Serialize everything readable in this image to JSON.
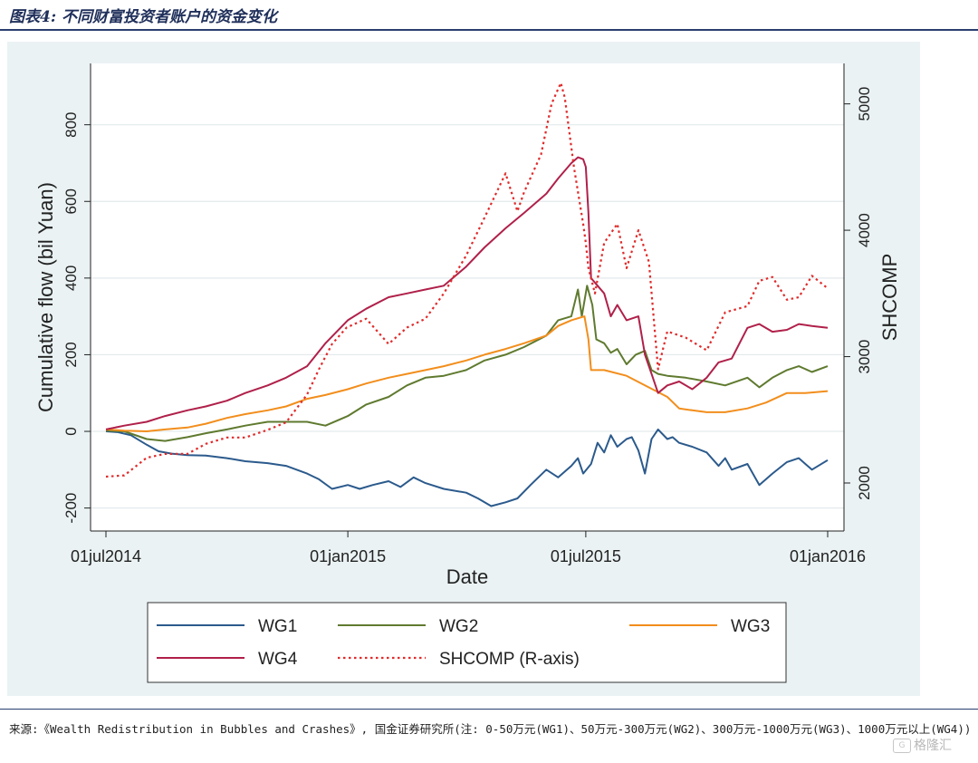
{
  "title": "图表4: 不同财富投资者账户的资金变化",
  "source": "来源:《Wealth Redistribution in Bubbles and Crashes》, 国金证券研究所(注: 0-50万元(WG1)、50万元-300万元(WG2)、300万元-1000万元(WG3)、1000万元以上(WG4))",
  "watermark": {
    "text": "格隆汇",
    "icon": "watermark-logo-icon"
  },
  "chart_data": {
    "type": "line",
    "title": "",
    "xlabel": "Date",
    "ylabel": "Cumulative flow (bil Yuan)",
    "y2label": "SHCOMP",
    "xlim": [
      "2014-07-01",
      "2016-01-01"
    ],
    "ylim": [
      -260,
      960
    ],
    "y2lim": [
      1620,
      5320
    ],
    "x_ticks": [
      {
        "date": "2014-07-01",
        "label": "01jul2014"
      },
      {
        "date": "2015-01-01",
        "label": "01jan2015"
      },
      {
        "date": "2015-07-01",
        "label": "01jul2015"
      },
      {
        "date": "2016-01-01",
        "label": "01jan2016"
      }
    ],
    "y_ticks": [
      -200,
      0,
      200,
      400,
      600,
      800
    ],
    "y2_ticks": [
      2000,
      3000,
      4000,
      5000
    ],
    "grid": true,
    "legend_position": "bottom",
    "series": [
      {
        "name": "WG1",
        "axis": "left",
        "color": "#2b5a8c",
        "style": "solid",
        "points": [
          [
            "2014-07-01",
            0
          ],
          [
            "2014-07-10",
            -2
          ],
          [
            "2014-07-20",
            -10
          ],
          [
            "2014-08-01",
            -35
          ],
          [
            "2014-08-10",
            -52
          ],
          [
            "2014-08-20",
            -58
          ],
          [
            "2014-09-01",
            -62
          ],
          [
            "2014-09-15",
            -63
          ],
          [
            "2014-10-01",
            -70
          ],
          [
            "2014-10-15",
            -78
          ],
          [
            "2014-11-01",
            -83
          ],
          [
            "2014-11-15",
            -90
          ],
          [
            "2014-12-01",
            -110
          ],
          [
            "2014-12-10",
            -125
          ],
          [
            "2014-12-20",
            -150
          ],
          [
            "2015-01-01",
            -140
          ],
          [
            "2015-01-10",
            -150
          ],
          [
            "2015-01-20",
            -140
          ],
          [
            "2015-02-01",
            -130
          ],
          [
            "2015-02-10",
            -145
          ],
          [
            "2015-02-20",
            -120
          ],
          [
            "2015-03-01",
            -135
          ],
          [
            "2015-03-15",
            -150
          ],
          [
            "2015-04-01",
            -160
          ],
          [
            "2015-04-10",
            -175
          ],
          [
            "2015-04-20",
            -195
          ],
          [
            "2015-05-01",
            -185
          ],
          [
            "2015-05-10",
            -175
          ],
          [
            "2015-05-20",
            -140
          ],
          [
            "2015-06-01",
            -100
          ],
          [
            "2015-06-10",
            -120
          ],
          [
            "2015-06-20",
            -90
          ],
          [
            "2015-06-25",
            -70
          ],
          [
            "2015-06-29",
            -110
          ],
          [
            "2015-07-05",
            -85
          ],
          [
            "2015-07-10",
            -30
          ],
          [
            "2015-07-15",
            -55
          ],
          [
            "2015-07-20",
            -10
          ],
          [
            "2015-07-25",
            -40
          ],
          [
            "2015-08-01",
            -20
          ],
          [
            "2015-08-05",
            -15
          ],
          [
            "2015-08-10",
            -50
          ],
          [
            "2015-08-15",
            -110
          ],
          [
            "2015-08-20",
            -20
          ],
          [
            "2015-08-25",
            5
          ],
          [
            "2015-09-01",
            -20
          ],
          [
            "2015-09-05",
            -15
          ],
          [
            "2015-09-10",
            -30
          ],
          [
            "2015-09-20",
            -40
          ],
          [
            "2015-10-01",
            -55
          ],
          [
            "2015-10-10",
            -90
          ],
          [
            "2015-10-15",
            -70
          ],
          [
            "2015-10-20",
            -100
          ],
          [
            "2015-11-01",
            -85
          ],
          [
            "2015-11-10",
            -140
          ],
          [
            "2015-11-20",
            -110
          ],
          [
            "2015-12-01",
            -80
          ],
          [
            "2015-12-10",
            -70
          ],
          [
            "2015-12-20",
            -100
          ],
          [
            "2016-01-01",
            -75
          ]
        ]
      },
      {
        "name": "WG2",
        "axis": "left",
        "color": "#5f7a2f",
        "style": "solid",
        "points": [
          [
            "2014-07-01",
            2
          ],
          [
            "2014-07-15",
            0
          ],
          [
            "2014-08-01",
            -20
          ],
          [
            "2014-08-15",
            -25
          ],
          [
            "2014-09-01",
            -15
          ],
          [
            "2014-09-15",
            -5
          ],
          [
            "2014-10-01",
            5
          ],
          [
            "2014-10-15",
            15
          ],
          [
            "2014-11-01",
            25
          ],
          [
            "2014-11-15",
            25
          ],
          [
            "2014-12-01",
            25
          ],
          [
            "2014-12-15",
            15
          ],
          [
            "2015-01-01",
            40
          ],
          [
            "2015-01-15",
            70
          ],
          [
            "2015-02-01",
            90
          ],
          [
            "2015-02-15",
            120
          ],
          [
            "2015-03-01",
            140
          ],
          [
            "2015-03-15",
            145
          ],
          [
            "2015-04-01",
            160
          ],
          [
            "2015-04-15",
            185
          ],
          [
            "2015-05-01",
            200
          ],
          [
            "2015-05-15",
            220
          ],
          [
            "2015-06-01",
            250
          ],
          [
            "2015-06-10",
            290
          ],
          [
            "2015-06-20",
            300
          ],
          [
            "2015-06-25",
            370
          ],
          [
            "2015-06-28",
            300
          ],
          [
            "2015-07-02",
            380
          ],
          [
            "2015-07-06",
            330
          ],
          [
            "2015-07-09",
            240
          ],
          [
            "2015-07-15",
            230
          ],
          [
            "2015-07-20",
            205
          ],
          [
            "2015-07-25",
            215
          ],
          [
            "2015-08-01",
            175
          ],
          [
            "2015-08-08",
            200
          ],
          [
            "2015-08-15",
            210
          ],
          [
            "2015-08-20",
            160
          ],
          [
            "2015-08-25",
            150
          ],
          [
            "2015-09-01",
            145
          ],
          [
            "2015-09-15",
            140
          ],
          [
            "2015-10-01",
            130
          ],
          [
            "2015-10-15",
            120
          ],
          [
            "2015-11-01",
            140
          ],
          [
            "2015-11-10",
            115
          ],
          [
            "2015-11-20",
            140
          ],
          [
            "2015-12-01",
            160
          ],
          [
            "2015-12-10",
            170
          ],
          [
            "2015-12-20",
            155
          ],
          [
            "2016-01-01",
            170
          ]
        ]
      },
      {
        "name": "WG3",
        "axis": "left",
        "color": "#f28e1c",
        "style": "solid",
        "points": [
          [
            "2014-07-01",
            5
          ],
          [
            "2014-07-15",
            2
          ],
          [
            "2014-08-01",
            0
          ],
          [
            "2014-08-15",
            5
          ],
          [
            "2014-09-01",
            10
          ],
          [
            "2014-09-15",
            20
          ],
          [
            "2014-10-01",
            35
          ],
          [
            "2014-10-15",
            45
          ],
          [
            "2014-11-01",
            55
          ],
          [
            "2014-11-15",
            65
          ],
          [
            "2014-12-01",
            85
          ],
          [
            "2014-12-15",
            95
          ],
          [
            "2015-01-01",
            110
          ],
          [
            "2015-01-15",
            125
          ],
          [
            "2015-02-01",
            140
          ],
          [
            "2015-02-15",
            150
          ],
          [
            "2015-03-01",
            160
          ],
          [
            "2015-03-15",
            170
          ],
          [
            "2015-04-01",
            185
          ],
          [
            "2015-04-15",
            200
          ],
          [
            "2015-05-01",
            215
          ],
          [
            "2015-05-15",
            230
          ],
          [
            "2015-06-01",
            250
          ],
          [
            "2015-06-10",
            275
          ],
          [
            "2015-06-20",
            290
          ],
          [
            "2015-06-30",
            300
          ],
          [
            "2015-07-03",
            240
          ],
          [
            "2015-07-05",
            160
          ],
          [
            "2015-07-15",
            160
          ],
          [
            "2015-08-01",
            145
          ],
          [
            "2015-08-15",
            120
          ],
          [
            "2015-09-01",
            90
          ],
          [
            "2015-09-10",
            60
          ],
          [
            "2015-09-20",
            55
          ],
          [
            "2015-10-01",
            50
          ],
          [
            "2015-10-15",
            50
          ],
          [
            "2015-11-01",
            60
          ],
          [
            "2015-11-15",
            75
          ],
          [
            "2015-12-01",
            100
          ],
          [
            "2015-12-15",
            100
          ],
          [
            "2016-01-01",
            105
          ]
        ]
      },
      {
        "name": "WG4",
        "axis": "left",
        "color": "#b0204a",
        "style": "solid",
        "points": [
          [
            "2014-07-01",
            5
          ],
          [
            "2014-07-15",
            15
          ],
          [
            "2014-08-01",
            25
          ],
          [
            "2014-08-15",
            40
          ],
          [
            "2014-09-01",
            55
          ],
          [
            "2014-09-15",
            65
          ],
          [
            "2014-10-01",
            80
          ],
          [
            "2014-10-15",
            100
          ],
          [
            "2014-11-01",
            120
          ],
          [
            "2014-11-15",
            140
          ],
          [
            "2014-12-01",
            170
          ],
          [
            "2014-12-15",
            230
          ],
          [
            "2015-01-01",
            290
          ],
          [
            "2015-01-15",
            320
          ],
          [
            "2015-02-01",
            350
          ],
          [
            "2015-02-15",
            360
          ],
          [
            "2015-03-01",
            370
          ],
          [
            "2015-03-15",
            380
          ],
          [
            "2015-04-01",
            430
          ],
          [
            "2015-04-15",
            480
          ],
          [
            "2015-05-01",
            530
          ],
          [
            "2015-05-15",
            570
          ],
          [
            "2015-06-01",
            620
          ],
          [
            "2015-06-10",
            660
          ],
          [
            "2015-06-20",
            700
          ],
          [
            "2015-06-25",
            715
          ],
          [
            "2015-06-29",
            710
          ],
          [
            "2015-07-01",
            690
          ],
          [
            "2015-07-03",
            570
          ],
          [
            "2015-07-05",
            400
          ],
          [
            "2015-07-10",
            380
          ],
          [
            "2015-07-15",
            360
          ],
          [
            "2015-07-20",
            300
          ],
          [
            "2015-07-25",
            330
          ],
          [
            "2015-08-01",
            290
          ],
          [
            "2015-08-10",
            300
          ],
          [
            "2015-08-15",
            200
          ],
          [
            "2015-08-20",
            150
          ],
          [
            "2015-08-25",
            100
          ],
          [
            "2015-09-01",
            120
          ],
          [
            "2015-09-10",
            130
          ],
          [
            "2015-09-20",
            110
          ],
          [
            "2015-10-01",
            140
          ],
          [
            "2015-10-10",
            180
          ],
          [
            "2015-10-20",
            190
          ],
          [
            "2015-11-01",
            270
          ],
          [
            "2015-11-10",
            280
          ],
          [
            "2015-11-20",
            260
          ],
          [
            "2015-12-01",
            265
          ],
          [
            "2015-12-10",
            280
          ],
          [
            "2015-12-20",
            275
          ],
          [
            "2016-01-01",
            270
          ]
        ]
      },
      {
        "name": "SHCOMP (R-axis)",
        "axis": "right",
        "color": "#e02b2b",
        "style": "dotted",
        "points": [
          [
            "2014-07-01",
            2050
          ],
          [
            "2014-07-15",
            2060
          ],
          [
            "2014-08-01",
            2200
          ],
          [
            "2014-08-15",
            2230
          ],
          [
            "2014-09-01",
            2230
          ],
          [
            "2014-09-15",
            2310
          ],
          [
            "2014-10-01",
            2360
          ],
          [
            "2014-10-15",
            2360
          ],
          [
            "2014-11-01",
            2420
          ],
          [
            "2014-11-15",
            2480
          ],
          [
            "2014-12-01",
            2700
          ],
          [
            "2014-12-10",
            2900
          ],
          [
            "2014-12-20",
            3100
          ],
          [
            "2014-12-31",
            3230
          ],
          [
            "2015-01-15",
            3300
          ],
          [
            "2015-02-01",
            3100
          ],
          [
            "2015-02-15",
            3230
          ],
          [
            "2015-03-01",
            3300
          ],
          [
            "2015-03-15",
            3500
          ],
          [
            "2015-04-01",
            3800
          ],
          [
            "2015-04-15",
            4100
          ],
          [
            "2015-05-01",
            4450
          ],
          [
            "2015-05-10",
            4150
          ],
          [
            "2015-05-15",
            4300
          ],
          [
            "2015-05-28",
            4600
          ],
          [
            "2015-06-05",
            5000
          ],
          [
            "2015-06-12",
            5166
          ],
          [
            "2015-06-15",
            5050
          ],
          [
            "2015-06-22",
            4500
          ],
          [
            "2015-06-29",
            4050
          ],
          [
            "2015-07-01",
            3900
          ],
          [
            "2015-07-03",
            3700
          ],
          [
            "2015-07-08",
            3500
          ],
          [
            "2015-07-15",
            3900
          ],
          [
            "2015-07-25",
            4050
          ],
          [
            "2015-08-01",
            3700
          ],
          [
            "2015-08-10",
            4000
          ],
          [
            "2015-08-18",
            3750
          ],
          [
            "2015-08-25",
            2900
          ],
          [
            "2015-09-01",
            3200
          ],
          [
            "2015-09-15",
            3150
          ],
          [
            "2015-10-01",
            3050
          ],
          [
            "2015-10-15",
            3350
          ],
          [
            "2015-11-01",
            3400
          ],
          [
            "2015-11-10",
            3600
          ],
          [
            "2015-11-20",
            3630
          ],
          [
            "2015-12-01",
            3450
          ],
          [
            "2015-12-10",
            3470
          ],
          [
            "2015-12-20",
            3640
          ],
          [
            "2016-01-01",
            3540
          ]
        ]
      }
    ]
  }
}
